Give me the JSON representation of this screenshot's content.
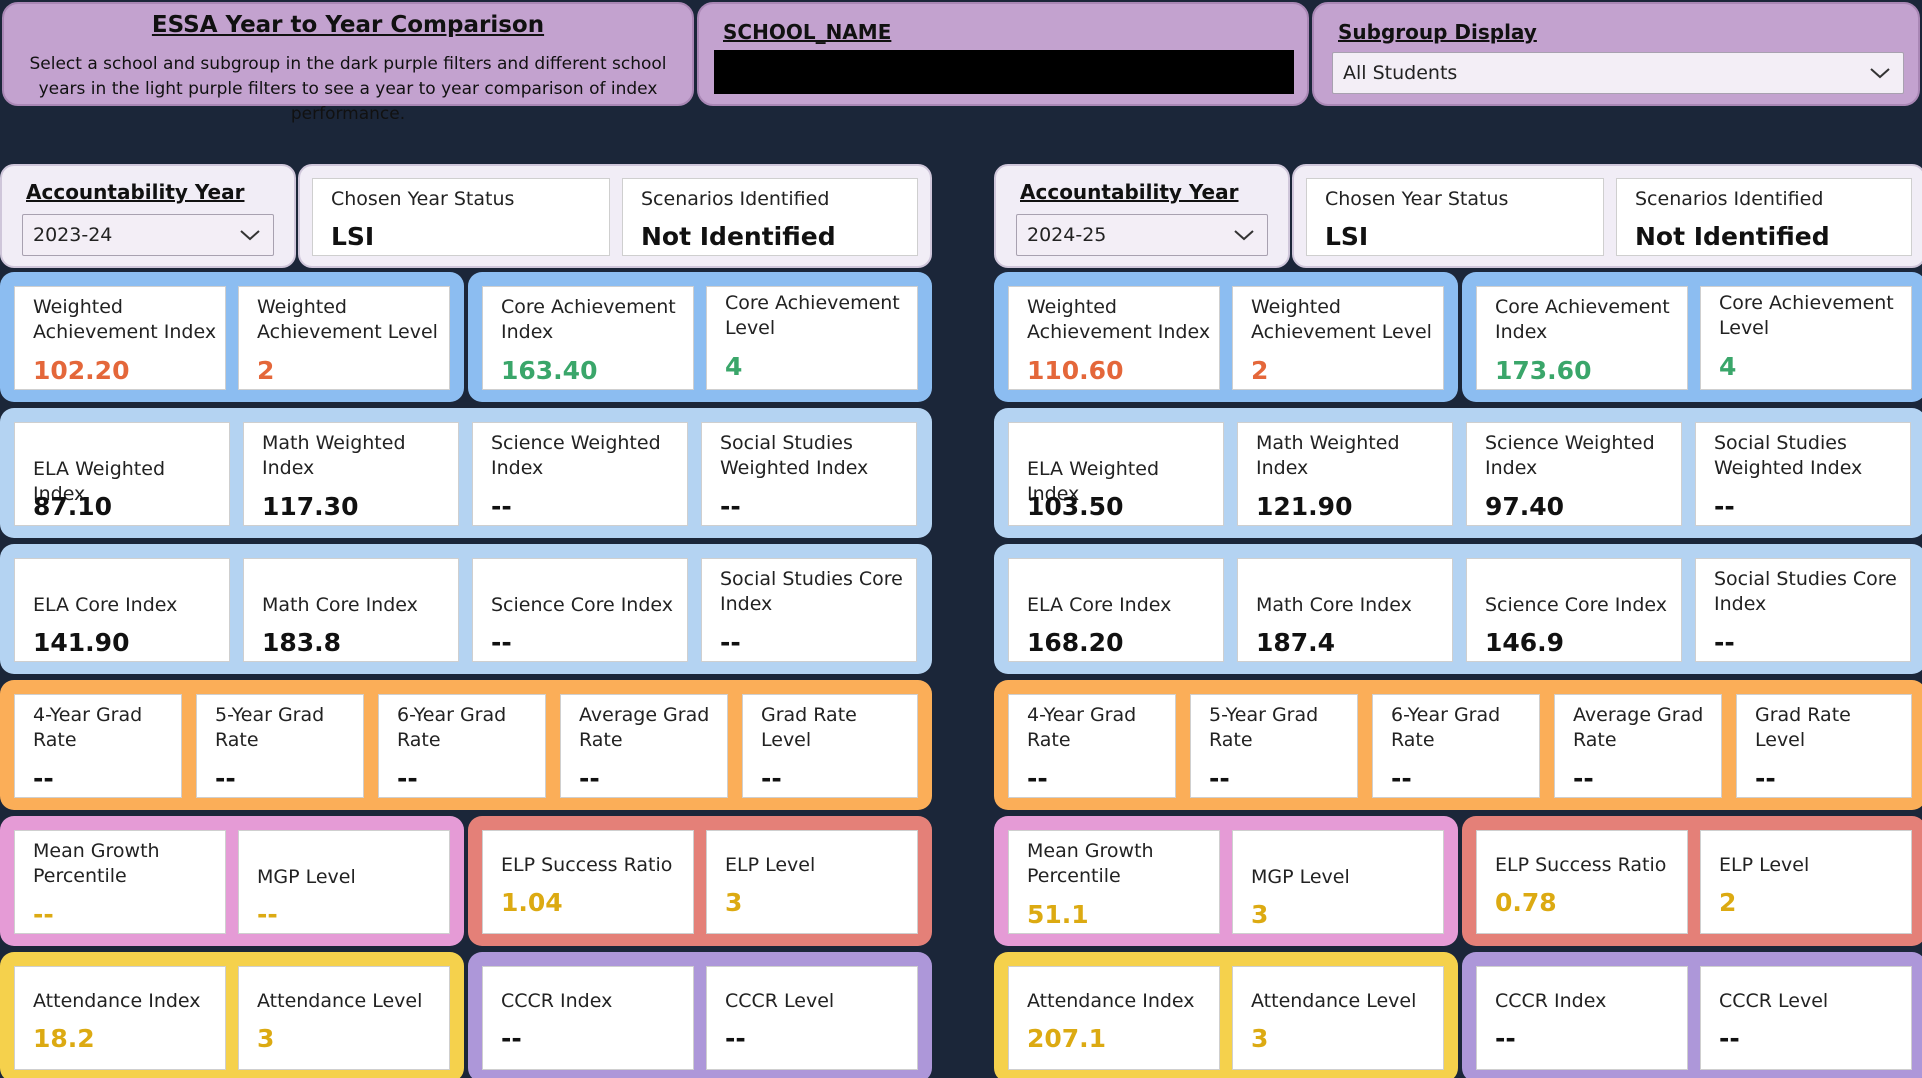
{
  "header": {
    "title": "ESSA Year to Year Comparison",
    "description": "Select a school and subgroup in the dark purple filters and different school years in the light purple filters to see a year to year comparison of index performance.",
    "school_label": "SCHOOL_NAME",
    "subgroup_label": "Subgroup Display",
    "subgroup_value": "All Students"
  },
  "colors": {
    "background": "#1b2639",
    "filter_dark": "#c3a2cf",
    "filter_light": "#f1edf6",
    "achievement_band": "#8cbdf1",
    "subject_band": "#b4d3f2",
    "grad_band": "#fbae58",
    "growth_band": "#e59bd6",
    "elp_band": "#e48078",
    "attendance_band": "#f5d14c",
    "cccr_band": "#ad97d9",
    "value_orange": "#e4673a",
    "value_green": "#3aa66a",
    "value_gold": "#dcaa12"
  },
  "years": [
    {
      "year_label": "Accountability Year",
      "year_value": "2023-24",
      "chosen_status_label": "Chosen Year Status",
      "chosen_status_value": "LSI",
      "scenarios_label": "Scenarios Identified",
      "scenarios_value": "Not Identified",
      "weighted_achievement_index": {
        "label": "Weighted Achievement Index",
        "value": "102.20"
      },
      "weighted_achievement_level": {
        "label": "Weighted Achievement Level",
        "value": "2"
      },
      "core_achievement_index": {
        "label": "Core Achievement Index",
        "value": "163.40"
      },
      "core_achievement_level": {
        "label": "Core Achievement Level",
        "value": "4"
      },
      "ela_weighted_index": {
        "label": "ELA Weighted Index",
        "value": "87.10"
      },
      "math_weighted_index": {
        "label": "Math Weighted Index",
        "value": "117.30"
      },
      "science_weighted_index": {
        "label": "Science Weighted Index",
        "value": "--"
      },
      "social_studies_weighted_index": {
        "label": "Social Studies Weighted Index",
        "value": "--"
      },
      "ela_core_index": {
        "label": "ELA Core Index",
        "value": "141.90"
      },
      "math_core_index": {
        "label": "Math Core Index",
        "value": "183.8"
      },
      "science_core_index": {
        "label": "Science Core Index",
        "value": "--"
      },
      "social_studies_core_index": {
        "label": "Social Studies Core Index",
        "value": "--"
      },
      "grad_4yr": {
        "label": "4-Year Grad Rate",
        "value": "--"
      },
      "grad_5yr": {
        "label": "5-Year Grad Rate",
        "value": "--"
      },
      "grad_6yr": {
        "label": "6-Year Grad Rate",
        "value": "--"
      },
      "grad_avg": {
        "label": "Average Grad Rate",
        "value": "--"
      },
      "grad_level": {
        "label": "Grad Rate Level",
        "value": "--"
      },
      "mgp": {
        "label": "Mean Growth Percentile",
        "value": "--"
      },
      "mgp_level": {
        "label": "MGP Level",
        "value": "--"
      },
      "elp_ratio": {
        "label": "ELP Success Ratio",
        "value": "1.04"
      },
      "elp_level": {
        "label": "ELP Level",
        "value": "3"
      },
      "attendance_index": {
        "label": "Attendance Index",
        "value": "18.2"
      },
      "attendance_level": {
        "label": "Attendance Level",
        "value": "3"
      },
      "cccr_index": {
        "label": "CCCR Index",
        "value": "--"
      },
      "cccr_level": {
        "label": "CCCR Level",
        "value": "--"
      }
    },
    {
      "year_label": "Accountability Year",
      "year_value": "2024-25",
      "chosen_status_label": "Chosen Year Status",
      "chosen_status_value": "LSI",
      "scenarios_label": "Scenarios Identified",
      "scenarios_value": "Not Identified",
      "weighted_achievement_index": {
        "label": "Weighted Achievement Index",
        "value": "110.60"
      },
      "weighted_achievement_level": {
        "label": "Weighted Achievement Level",
        "value": "2"
      },
      "core_achievement_index": {
        "label": "Core Achievement Index",
        "value": "173.60"
      },
      "core_achievement_level": {
        "label": "Core Achievement Level",
        "value": "4"
      },
      "ela_weighted_index": {
        "label": "ELA Weighted Index",
        "value": "103.50"
      },
      "math_weighted_index": {
        "label": "Math Weighted Index",
        "value": "121.90"
      },
      "science_weighted_index": {
        "label": "Science Weighted Index",
        "value": "97.40"
      },
      "social_studies_weighted_index": {
        "label": "Social Studies Weighted Index",
        "value": "--"
      },
      "ela_core_index": {
        "label": "ELA Core Index",
        "value": "168.20"
      },
      "math_core_index": {
        "label": "Math Core Index",
        "value": "187.4"
      },
      "science_core_index": {
        "label": "Science Core Index",
        "value": "146.9"
      },
      "social_studies_core_index": {
        "label": "Social Studies Core Index",
        "value": "--"
      },
      "grad_4yr": {
        "label": "4-Year Grad Rate",
        "value": "--"
      },
      "grad_5yr": {
        "label": "5-Year Grad Rate",
        "value": "--"
      },
      "grad_6yr": {
        "label": "6-Year Grad Rate",
        "value": "--"
      },
      "grad_avg": {
        "label": "Average Grad Rate",
        "value": "--"
      },
      "grad_level": {
        "label": "Grad Rate Level",
        "value": "--"
      },
      "mgp": {
        "label": "Mean Growth Percentile",
        "value": "51.1"
      },
      "mgp_level": {
        "label": "MGP Level",
        "value": "3"
      },
      "elp_ratio": {
        "label": "ELP Success Ratio",
        "value": "0.78"
      },
      "elp_level": {
        "label": "ELP Level",
        "value": "2"
      },
      "attendance_index": {
        "label": "Attendance Index",
        "value": "207.1"
      },
      "attendance_level": {
        "label": "Attendance Level",
        "value": "3"
      },
      "cccr_index": {
        "label": "CCCR Index",
        "value": "--"
      },
      "cccr_level": {
        "label": "CCCR Level",
        "value": "--"
      }
    }
  ]
}
